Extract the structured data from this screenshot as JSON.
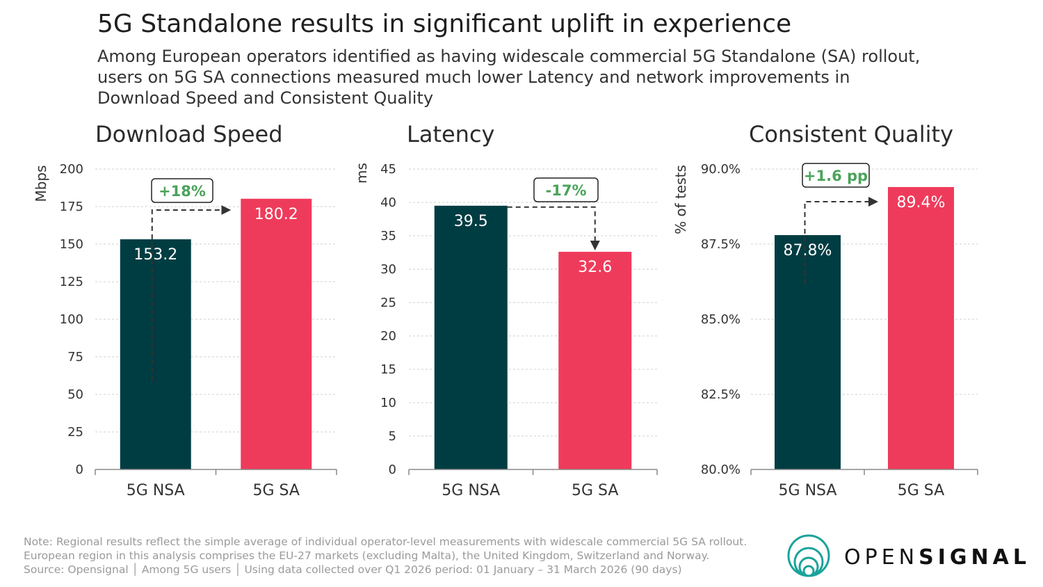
{
  "title": "5G Standalone results in significant uplift in experience",
  "subtitle": "Among European operators identified as having widescale commercial 5G Standalone (SA) rollout, users on 5G SA connections measured much lower Latency and network improvements in Download Speed and Consistent Quality",
  "colors": {
    "nsa": "#003d42",
    "sa": "#ef3b5b",
    "callout": "#4aa35a",
    "axis": "#888888",
    "grid": "#cfcfcf",
    "label": "#333333",
    "arrow": "#333333"
  },
  "chart_data": [
    {
      "type": "bar",
      "title": "Download Speed",
      "ylabel": "Mbps",
      "categories": [
        "5G NSA",
        "5G SA"
      ],
      "values": [
        153.2,
        180.2
      ],
      "value_labels": [
        "153.2",
        "180.2"
      ],
      "ylim": [
        0,
        200
      ],
      "yticks": [
        0,
        25,
        50,
        75,
        100,
        125,
        150,
        175,
        200
      ],
      "ytick_labels": [
        "0",
        "25",
        "50",
        "75",
        "100",
        "125",
        "150",
        "175",
        "200"
      ],
      "grid": true,
      "annotation": "+18%"
    },
    {
      "type": "bar",
      "title": "Latency",
      "ylabel": "ms",
      "categories": [
        "5G NSA",
        "5G SA"
      ],
      "values": [
        39.5,
        32.6
      ],
      "value_labels": [
        "39.5",
        "32.6"
      ],
      "ylim": [
        0,
        45
      ],
      "yticks": [
        0,
        5,
        10,
        15,
        20,
        25,
        30,
        35,
        40,
        45
      ],
      "ytick_labels": [
        "0",
        "5",
        "10",
        "15",
        "20",
        "25",
        "30",
        "35",
        "40",
        "45"
      ],
      "grid": true,
      "annotation": "-17%"
    },
    {
      "type": "bar",
      "title": "Consistent Quality",
      "ylabel": "% of tests",
      "categories": [
        "5G NSA",
        "5G SA"
      ],
      "values": [
        87.8,
        89.4
      ],
      "value_labels": [
        "87.8%",
        "89.4%"
      ],
      "ylim": [
        80,
        90
      ],
      "yticks": [
        80,
        82.5,
        85,
        87.5,
        90
      ],
      "ytick_labels": [
        "80.0%",
        "82.5%",
        "85.0%",
        "87.5%",
        "90.0%"
      ],
      "grid": true,
      "annotation": "+1.6 pp"
    }
  ],
  "footnote": {
    "line1": "Note: Regional results reflect the simple average of individual operator-level measurements with widescale commercial 5G SA rollout.",
    "line2": "European region in this analysis comprises the EU-27 markets (excluding Malta), the United Kingdom, Switzerland and Norway.",
    "line3": "Source: Opensignal │ Among 5G users │  Using data collected over Q1 2026 period: 01 January – 31 March 2026 (90 days)"
  },
  "logo": {
    "part1": "OPEN",
    "part2": "SIGNAL"
  }
}
